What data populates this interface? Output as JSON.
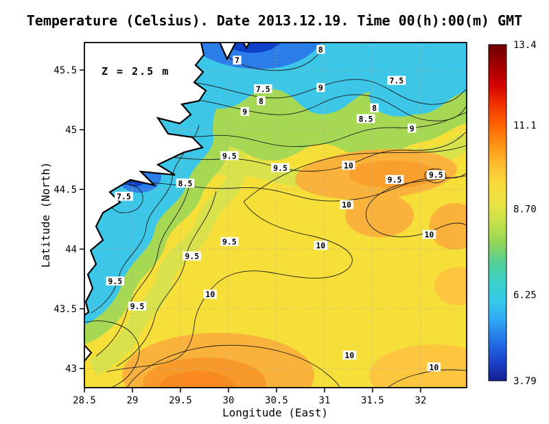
{
  "title": "Temperature (Celsius). Date 2013.12.19. Time 00(h):00(m) GMT",
  "annotation": "Z = 2.5 m",
  "axes": {
    "x": {
      "label": "Longitude (East)",
      "ticks": [
        "28.5",
        "29",
        "29.5",
        "30",
        "30.5",
        "31",
        "31.5",
        "32"
      ]
    },
    "y": {
      "label": "Latitude (North)",
      "ticks": [
        "45.5",
        "45",
        "44.5",
        "44",
        "43.5",
        "43"
      ]
    }
  },
  "colorbar": {
    "labels": [
      "13.4",
      "11.1",
      "8.70",
      "6.25",
      "3.79"
    ],
    "range": [
      3.79,
      13.4
    ],
    "gradient": [
      "#6f0000",
      "#9e0000",
      "#d00000",
      "#f33000",
      "#fe6100",
      "#fe9013",
      "#fdb92d",
      "#f8da3a",
      "#e9e343",
      "#c6e04a",
      "#93d658",
      "#55cf96",
      "#3ad0cc",
      "#35c8ea",
      "#2da4f2",
      "#2472e6",
      "#1b44cc",
      "#121f92"
    ]
  },
  "chart_data": {
    "type": "heatmap",
    "title": "Temperature (Celsius). Date 2013.12.19. Time 00(h):00(m) GMT",
    "variable": "Temperature (Celsius)",
    "depth_annotation": "Z = 2.5 m",
    "date": "2013.12.19",
    "time": "00(h):00(m) GMT",
    "xlabel": "Longitude (East)",
    "ylabel": "Latitude (North)",
    "xlim": [
      28.5,
      32.48
    ],
    "ylim": [
      42.84,
      45.73
    ],
    "grid": true,
    "colorbar_range": [
      3.79,
      13.4
    ],
    "colorbar_tick_labels": [
      13.4,
      11.1,
      8.7,
      6.25,
      3.79
    ],
    "contour_levels": [
      7,
      7.5,
      8,
      8.5,
      9,
      9.5,
      10
    ],
    "contour_labels": [
      {
        "value": "8",
        "lon": 30.96,
        "lat": 45.67
      },
      {
        "value": "7",
        "lon": 30.09,
        "lat": 45.58
      },
      {
        "value": "7.5",
        "lon": 31.75,
        "lat": 45.41
      },
      {
        "value": "7.5",
        "lon": 30.36,
        "lat": 45.34
      },
      {
        "value": "8",
        "lon": 30.34,
        "lat": 45.24
      },
      {
        "value": "9",
        "lon": 30.96,
        "lat": 45.35
      },
      {
        "value": "8",
        "lon": 31.52,
        "lat": 45.18
      },
      {
        "value": "9",
        "lon": 30.17,
        "lat": 45.15
      },
      {
        "value": "8.5",
        "lon": 31.43,
        "lat": 45.09
      },
      {
        "value": "9",
        "lon": 31.91,
        "lat": 45.01
      },
      {
        "value": "9.5",
        "lon": 30.01,
        "lat": 44.78
      },
      {
        "value": "9.5",
        "lon": 30.54,
        "lat": 44.68
      },
      {
        "value": "10",
        "lon": 31.25,
        "lat": 44.7
      },
      {
        "value": "9.5",
        "lon": 31.73,
        "lat": 44.58
      },
      {
        "value": "9.5",
        "lon": 32.16,
        "lat": 44.62
      },
      {
        "value": "8.5",
        "lon": 29.55,
        "lat": 44.55
      },
      {
        "value": "7.5",
        "lon": 28.91,
        "lat": 44.44
      },
      {
        "value": "10",
        "lon": 31.23,
        "lat": 44.37
      },
      {
        "value": "10",
        "lon": 32.09,
        "lat": 44.12
      },
      {
        "value": "9.5",
        "lon": 30.01,
        "lat": 44.06
      },
      {
        "value": "10",
        "lon": 30.96,
        "lat": 44.03
      },
      {
        "value": "9.5",
        "lon": 29.62,
        "lat": 43.94
      },
      {
        "value": "9.5",
        "lon": 28.82,
        "lat": 43.73
      },
      {
        "value": "10",
        "lon": 29.81,
        "lat": 43.62
      },
      {
        "value": "9.5",
        "lon": 29.05,
        "lat": 43.52
      },
      {
        "value": "10",
        "lon": 31.26,
        "lat": 43.11
      },
      {
        "value": "10",
        "lon": 32.14,
        "lat": 43.01
      }
    ]
  }
}
